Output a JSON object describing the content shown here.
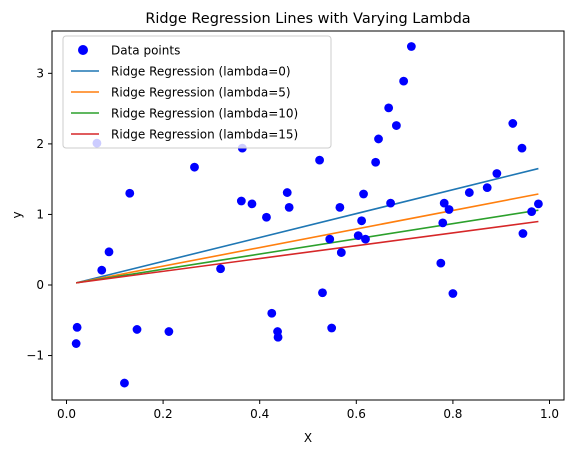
{
  "chart_data": {
    "type": "scatter",
    "title": "Ridge Regression Lines with Varying Lambda",
    "xlabel": "X",
    "ylabel": "y",
    "xlim": [
      -0.03,
      1.03
    ],
    "ylim": [
      -1.63,
      3.6
    ],
    "x_ticks": [
      0.0,
      0.2,
      0.4,
      0.6,
      0.8,
      1.0
    ],
    "x_tick_labels": [
      "0.0",
      "0.2",
      "0.4",
      "0.6",
      "0.8",
      "1.0"
    ],
    "y_ticks": [
      -1,
      0,
      1,
      2,
      3
    ],
    "y_tick_labels": [
      "−1",
      "0",
      "1",
      "2",
      "3"
    ],
    "grid": false,
    "legend_position": "upper left",
    "scatter": {
      "name": "Data points",
      "color": "#0000ff",
      "points": [
        [
          0.02,
          -0.83
        ],
        [
          0.022,
          -0.6
        ],
        [
          0.063,
          2.01
        ],
        [
          0.073,
          0.21
        ],
        [
          0.088,
          0.47
        ],
        [
          0.12,
          -1.39
        ],
        [
          0.131,
          1.3
        ],
        [
          0.146,
          -0.63
        ],
        [
          0.212,
          -0.66
        ],
        [
          0.265,
          1.67
        ],
        [
          0.319,
          0.23
        ],
        [
          0.362,
          1.19
        ],
        [
          0.364,
          1.94
        ],
        [
          0.384,
          1.15
        ],
        [
          0.414,
          0.96
        ],
        [
          0.425,
          -0.4
        ],
        [
          0.437,
          -0.66
        ],
        [
          0.438,
          -0.74
        ],
        [
          0.457,
          1.31
        ],
        [
          0.461,
          1.1
        ],
        [
          0.524,
          1.77
        ],
        [
          0.53,
          -0.11
        ],
        [
          0.545,
          0.65
        ],
        [
          0.549,
          -0.61
        ],
        [
          0.566,
          1.1
        ],
        [
          0.569,
          0.46
        ],
        [
          0.604,
          0.7
        ],
        [
          0.611,
          0.91
        ],
        [
          0.615,
          1.29
        ],
        [
          0.619,
          0.65
        ],
        [
          0.64,
          1.74
        ],
        [
          0.646,
          2.07
        ],
        [
          0.667,
          2.51
        ],
        [
          0.671,
          1.16
        ],
        [
          0.683,
          2.26
        ],
        [
          0.698,
          2.89
        ],
        [
          0.714,
          3.38
        ],
        [
          0.775,
          0.31
        ],
        [
          0.779,
          0.88
        ],
        [
          0.782,
          1.16
        ],
        [
          0.792,
          1.07
        ],
        [
          0.8,
          -0.12
        ],
        [
          0.834,
          1.31
        ],
        [
          0.871,
          1.38
        ],
        [
          0.891,
          1.58
        ],
        [
          0.924,
          2.29
        ],
        [
          0.943,
          1.94
        ],
        [
          0.945,
          0.73
        ],
        [
          0.963,
          1.04
        ],
        [
          0.977,
          1.15
        ]
      ]
    },
    "series": [
      {
        "name": "Ridge Regression (lambda=0)",
        "color": "#1f77b4",
        "x": [
          0.02,
          0.977
        ],
        "y": [
          0.03,
          1.65
        ]
      },
      {
        "name": "Ridge Regression (lambda=5)",
        "color": "#ff7f0e",
        "x": [
          0.02,
          0.977
        ],
        "y": [
          0.03,
          1.29
        ]
      },
      {
        "name": "Ridge Regression (lambda=10)",
        "color": "#2ca02c",
        "x": [
          0.02,
          0.977
        ],
        "y": [
          0.03,
          1.06
        ]
      },
      {
        "name": "Ridge Regression (lambda=15)",
        "color": "#d62728",
        "x": [
          0.02,
          0.977
        ],
        "y": [
          0.03,
          0.9
        ]
      }
    ]
  }
}
